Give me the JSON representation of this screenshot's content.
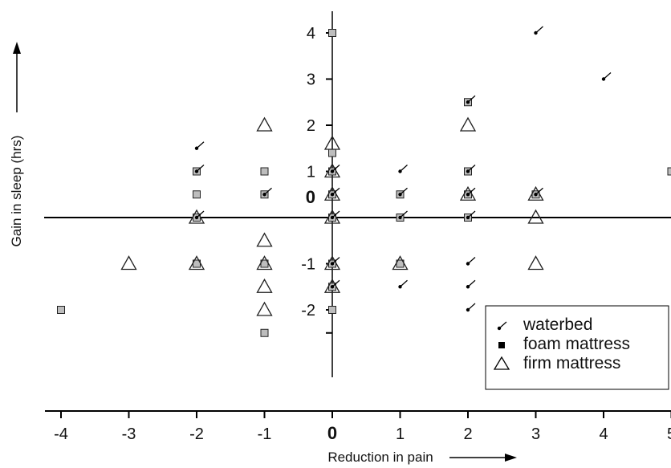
{
  "chart_data": {
    "type": "scatter",
    "xlabel": "Reduction in pain",
    "ylabel": "Gain in sleep (hrs)",
    "xlim": [
      -4.2,
      5.0
    ],
    "ylim": [
      -2.7,
      4.1
    ],
    "x_ticks": [
      "-4",
      "-3",
      "-2",
      "-1",
      "0",
      "1",
      "2",
      "3",
      "4",
      "5"
    ],
    "y_ticks": [
      "4",
      "3",
      "2",
      "1",
      "0",
      "-1",
      "-2"
    ],
    "legend": {
      "position": "bottom-right",
      "entries": [
        "waterbed",
        "foam mattress",
        "firm mattress"
      ]
    },
    "series": [
      {
        "name": "waterbed",
        "marker": "dot-tick",
        "points": [
          [
            3,
            4
          ],
          [
            4,
            3
          ],
          [
            2,
            2.5
          ],
          [
            -2,
            1.5
          ],
          [
            -2,
            1
          ],
          [
            0,
            1
          ],
          [
            1,
            1
          ],
          [
            2,
            1
          ],
          [
            -1,
            0.5
          ],
          [
            0,
            0.5
          ],
          [
            1,
            0.5
          ],
          [
            2,
            0.5
          ],
          [
            3,
            0.5
          ],
          [
            -2,
            0
          ],
          [
            0,
            0
          ],
          [
            1,
            0
          ],
          [
            2,
            0
          ],
          [
            0,
            -1
          ],
          [
            2,
            -1
          ],
          [
            0,
            -1.5
          ],
          [
            1,
            -1.5
          ],
          [
            2,
            -1.5
          ],
          [
            2,
            -2
          ]
        ]
      },
      {
        "name": "foam mattress",
        "marker": "square",
        "points": [
          [
            0,
            4
          ],
          [
            2,
            2.5
          ],
          [
            0,
            1.4
          ],
          [
            -2,
            1
          ],
          [
            -1,
            1
          ],
          [
            0,
            1
          ],
          [
            2,
            1
          ],
          [
            5,
            1
          ],
          [
            -2,
            0.5
          ],
          [
            -1,
            0.5
          ],
          [
            0,
            0.5
          ],
          [
            1,
            0.5
          ],
          [
            2,
            0.5
          ],
          [
            3,
            0.5
          ],
          [
            -2,
            0
          ],
          [
            0,
            0
          ],
          [
            1,
            0
          ],
          [
            2,
            0
          ],
          [
            -2,
            -1
          ],
          [
            -1,
            -1
          ],
          [
            0,
            -1
          ],
          [
            1,
            -1
          ],
          [
            0,
            -1.5
          ],
          [
            0,
            -2
          ],
          [
            -4,
            -2
          ],
          [
            -1,
            -2.5
          ]
        ]
      },
      {
        "name": "firm mattress",
        "marker": "triangle",
        "points": [
          [
            -1,
            2
          ],
          [
            2,
            2
          ],
          [
            0,
            1.6
          ],
          [
            0,
            1
          ],
          [
            0,
            0.5
          ],
          [
            2,
            0.5
          ],
          [
            3,
            0.5
          ],
          [
            -2,
            0
          ],
          [
            0,
            0
          ],
          [
            3,
            0
          ],
          [
            -1,
            -0.5
          ],
          [
            -3,
            -1
          ],
          [
            -2,
            -1
          ],
          [
            -1,
            -1
          ],
          [
            0,
            -1
          ],
          [
            1,
            -1
          ],
          [
            3,
            -1
          ],
          [
            -1,
            -1.5
          ],
          [
            0,
            -1.5
          ],
          [
            -1,
            -2
          ]
        ]
      }
    ]
  }
}
